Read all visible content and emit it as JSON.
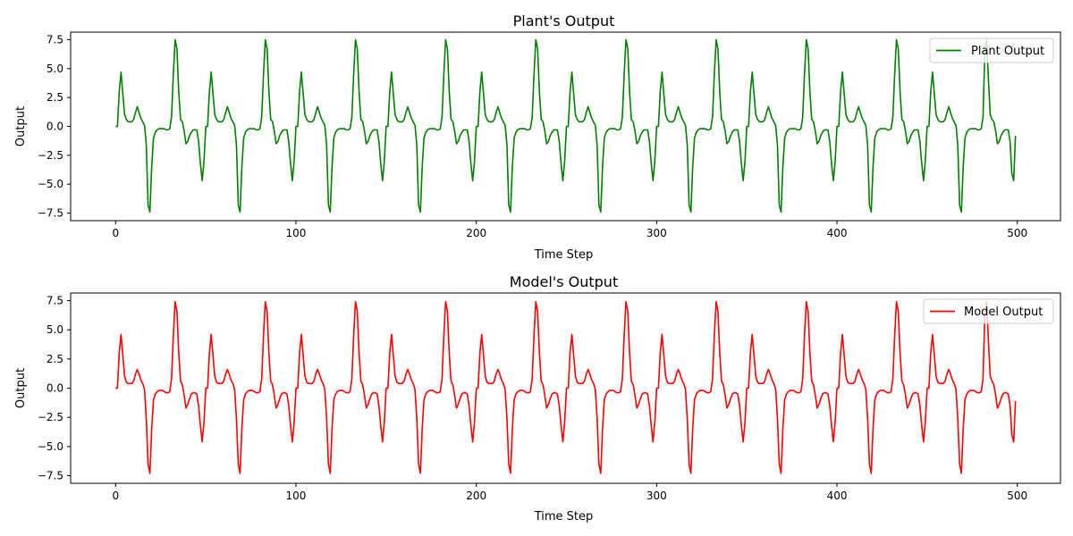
{
  "chart_data": [
    {
      "type": "line",
      "title": "Plant's Output",
      "xlabel": "Time Step",
      "ylabel": "Output",
      "xlim": [
        -24.95,
        523.95
      ],
      "ylim": [
        -8.15,
        8.15
      ],
      "xticks": [
        0,
        100,
        200,
        300,
        400,
        500
      ],
      "xtick_labels": [
        "0",
        "100",
        "200",
        "300",
        "400",
        "500"
      ],
      "yticks": [
        -7.5,
        -5.0,
        -2.5,
        0.0,
        2.5,
        5.0,
        7.5
      ],
      "ytick_labels": [
        "−7.5",
        "−5.0",
        "−2.5",
        "0.0",
        "2.5",
        "5.0",
        "7.5"
      ],
      "grid": false,
      "legend_position": "top-right",
      "series": [
        {
          "name": "Plant Output",
          "color": "#008000",
          "x_start": 0,
          "x_step": 1,
          "n": 500
        }
      ]
    },
    {
      "type": "line",
      "title": "Model's Output",
      "xlabel": "Time Step",
      "ylabel": "Output",
      "xlim": [
        -24.95,
        523.95
      ],
      "ylim": [
        -8.15,
        8.15
      ],
      "xticks": [
        0,
        100,
        200,
        300,
        400,
        500
      ],
      "xtick_labels": [
        "0",
        "100",
        "200",
        "300",
        "400",
        "500"
      ],
      "yticks": [
        -7.5,
        -5.0,
        -2.5,
        0.0,
        2.5,
        5.0,
        7.5
      ],
      "ytick_labels": [
        "−7.5",
        "−5.0",
        "−2.5",
        "0.0",
        "2.5",
        "5.0",
        "7.5"
      ],
      "grid": false,
      "legend_position": "top-right",
      "series": [
        {
          "name": "Model Output",
          "color": "#ff0000",
          "x_start": 0,
          "x_step": 1,
          "n": 500
        }
      ]
    }
  ],
  "cycle": {
    "period": 50,
    "plant_values": [
      0.0,
      0.0,
      3.0,
      4.7,
      2.8,
      1.0,
      0.6,
      0.4,
      0.4,
      0.4,
      0.6,
      1.2,
      1.7,
      1.2,
      0.7,
      0.4,
      0.1,
      -1.6,
      -6.8,
      -7.4,
      -3.5,
      -1.0,
      -0.5,
      -0.3,
      -0.2,
      -0.2,
      -0.2,
      -0.2,
      -0.3,
      -0.3,
      -0.2,
      0.8,
      4.5,
      7.5,
      6.7,
      3.0,
      0.6,
      0.4,
      -0.4,
      -1.5,
      -1.3,
      -0.8,
      -0.5,
      -0.3,
      -0.3,
      -0.3,
      -1.3,
      -3.2,
      -4.7,
      -3.0
    ],
    "model_values": [
      0.0,
      0.0,
      3.0,
      4.6,
      2.8,
      1.0,
      0.5,
      0.4,
      0.4,
      0.4,
      0.6,
      1.2,
      1.6,
      1.2,
      0.7,
      0.4,
      -0.1,
      -2.6,
      -6.5,
      -7.3,
      -3.5,
      -1.0,
      -0.5,
      -0.3,
      -0.2,
      -0.2,
      -0.2,
      -0.3,
      -0.4,
      -0.4,
      -0.3,
      0.8,
      4.5,
      7.4,
      6.6,
      3.0,
      0.6,
      0.3,
      -0.6,
      -1.7,
      -1.4,
      -0.9,
      -0.5,
      -0.4,
      -0.4,
      -0.5,
      -1.5,
      -3.2,
      -4.6,
      -2.9
    ],
    "plant_overrides": {
      "482": 6.5,
      "483": 7.5,
      "484": 4.0,
      "485": 1.0,
      "497": -4.1,
      "498": -4.7,
      "499": -0.8
    },
    "model_overrides": {
      "482": 6.4,
      "483": 7.4,
      "484": 4.0,
      "485": 1.0,
      "497": -4.0,
      "498": -4.6,
      "499": -1.1
    }
  }
}
